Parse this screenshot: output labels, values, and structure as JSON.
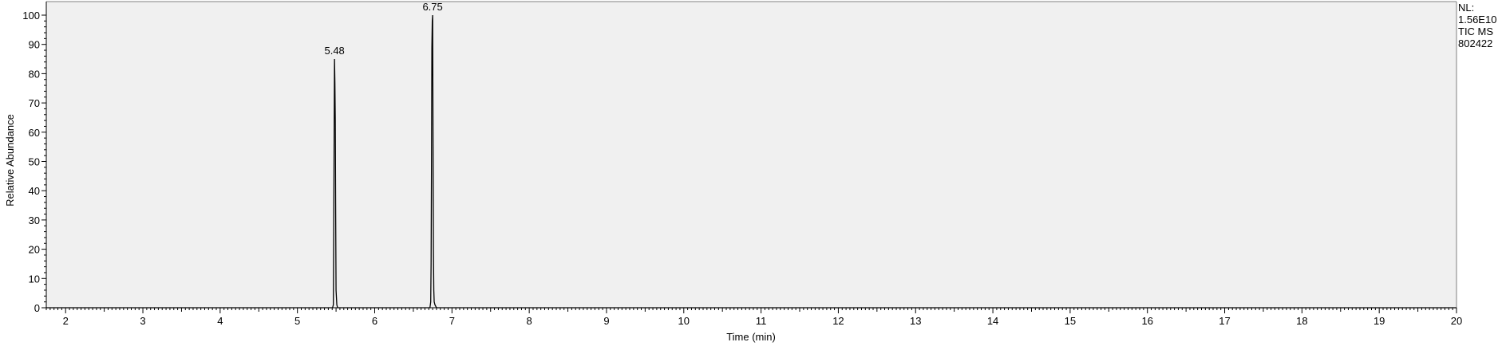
{
  "chart_data": {
    "type": "line",
    "xlabel": "Time (min)",
    "ylabel": "Relative Abundance",
    "xlim": [
      1.75,
      20
    ],
    "ylim": [
      0,
      100
    ],
    "x_ticks": [
      2,
      3,
      4,
      5,
      6,
      7,
      8,
      9,
      10,
      11,
      12,
      13,
      14,
      15,
      16,
      17,
      18,
      19,
      20
    ],
    "y_ticks": [
      0,
      10,
      20,
      30,
      40,
      50,
      60,
      70,
      80,
      90,
      100
    ],
    "grid": false,
    "background": "#f0f0f0",
    "line_color": "#000000",
    "peak_labels": [
      {
        "x": 5.48,
        "y": 85,
        "label": "5.48"
      },
      {
        "x": 6.75,
        "y": 100,
        "label": "6.75"
      }
    ],
    "series": [
      {
        "x": [
          1.75,
          5.455,
          5.465,
          5.47,
          5.475,
          5.48,
          5.485,
          5.49,
          5.495,
          5.5,
          5.51,
          5.52,
          6.715,
          6.725,
          6.73,
          6.735,
          6.74,
          6.745,
          6.75,
          6.755,
          6.76,
          6.765,
          6.77,
          6.78,
          6.79,
          6.8,
          20
        ],
        "y": [
          0,
          0,
          1,
          26,
          58,
          85,
          77,
          64,
          32,
          6,
          1,
          0,
          0,
          2,
          15,
          47,
          89,
          98,
          100,
          58,
          20,
          6,
          2,
          1,
          0.5,
          0,
          0
        ]
      }
    ],
    "side_annotation": [
      "NL:",
      "1.56E10",
      "TIC MS",
      "802422"
    ]
  }
}
